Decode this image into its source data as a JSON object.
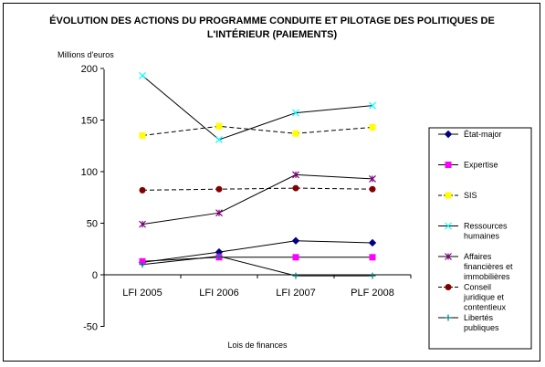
{
  "chart_data": {
    "type": "line",
    "title": "ÉVOLUTION DES ACTIONS DU PROGRAMME CONDUITE ET PILOTAGE DES POLITIQUES DE",
    "title_line2": "L'INTÉRIEUR (PAIEMENTS)",
    "ylabel": "Millions d'euros",
    "xlabel": "Lois de finances",
    "ylim": [
      -50,
      200
    ],
    "yticks": [
      -50,
      0,
      50,
      100,
      150,
      200
    ],
    "ytick_labels": [
      "-50",
      "0",
      "50",
      "100",
      "150",
      "200"
    ],
    "categories": [
      "LFI 2005",
      "LFI 2006",
      "LFI 2007",
      "PLF 2008"
    ],
    "grid": false,
    "legend_position": "right",
    "series": [
      {
        "name": "État-major",
        "values": [
          12,
          22,
          33,
          31
        ],
        "color": "#000080",
        "marker": "diamond",
        "dash": "solid"
      },
      {
        "name": "Expertise",
        "values": [
          13,
          17,
          17,
          17
        ],
        "color": "#ff00ff",
        "marker": "square",
        "dash": "solid"
      },
      {
        "name": "SIS",
        "values": [
          135,
          144,
          137,
          143
        ],
        "color": "#ffff00",
        "marker": "square",
        "dash": "dashed"
      },
      {
        "name": "Ressources humaines",
        "values": [
          193,
          131,
          157,
          164
        ],
        "color": "#00ffff",
        "marker": "cross",
        "dash": "solid"
      },
      {
        "name": "Affaires financières et immobilières",
        "values": [
          49,
          60,
          97,
          93
        ],
        "color": "#800080",
        "marker": "star",
        "dash": "solid"
      },
      {
        "name": "Conseil juridique et contentieux",
        "values": [
          82,
          83,
          84,
          83
        ],
        "color": "#800000",
        "marker": "circle",
        "dash": "dashed"
      },
      {
        "name": "Libertés publiques",
        "values": [
          10,
          18,
          -1,
          -1
        ],
        "color": "#008080",
        "marker": "plus",
        "dash": "solid"
      }
    ]
  }
}
